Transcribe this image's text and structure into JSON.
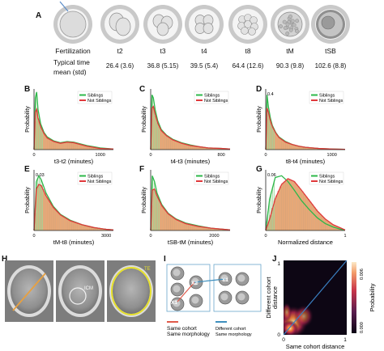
{
  "panel_letters": {
    "A": "A",
    "B": "B",
    "C": "C",
    "D": "D",
    "E": "E",
    "F": "F",
    "G": "G",
    "H": "H",
    "I": "I",
    "J": "J"
  },
  "stages": [
    "Fertilization",
    "t2",
    "t3",
    "t4",
    "t8",
    "tM",
    "tSB"
  ],
  "row_labels": {
    "typical_line1": "Typical time",
    "typical_line2": "mean (std)"
  },
  "typical_times": [
    "26.4 (3.6)",
    "36.8 (5.15)",
    "39.5 (5.4)",
    "64.4 (12.6)",
    "90.3 (9.8)",
    "102.6 (8.8)"
  ],
  "legend": {
    "siblings": "Siblings",
    "not_siblings": "Not Siblings"
  },
  "colors": {
    "siblings": "#2db84a",
    "not_siblings": "#e0393b",
    "hist": "#e7a877",
    "hist_edge": "#b98458",
    "j_line": "#3a7fc1"
  },
  "charts": {
    "B": {
      "ylabel": "Probability",
      "xlabel": "t3-t2 (minutes)",
      "yticks": [],
      "xticks": [
        "0",
        "1000"
      ]
    },
    "C": {
      "ylabel": "Probability",
      "xlabel": "t4-t3 (minutes)",
      "yticks": [],
      "xticks": [
        "0",
        "800"
      ]
    },
    "D": {
      "ylabel": "Probability",
      "xlabel": "t8-t4 (minutes)",
      "yticks": [
        "0.4"
      ],
      "xticks": [
        "0",
        "1000"
      ]
    },
    "E": {
      "ylabel": "Probability",
      "xlabel": "tM-t8 (minutes)",
      "yticks": [
        "0.03"
      ],
      "xticks": [
        "0",
        "3000"
      ]
    },
    "F": {
      "ylabel": "Probability",
      "xlabel": "tSB-tM (minutes)",
      "yticks": [],
      "xticks": [
        "0",
        "2000"
      ]
    },
    "G": {
      "ylabel": "Probability",
      "xlabel": "Normalized distance",
      "yticks": [
        "0.06"
      ],
      "xticks": [
        "0",
        "1"
      ]
    }
  },
  "panel_H": {
    "labels": [
      "ICM",
      "TE"
    ]
  },
  "panel_I": {
    "cells": [
      "X1",
      "X2",
      "Y1"
    ],
    "legend1_line1": "Same cohort",
    "legend1_line2": "Same morphology",
    "legend2_line1": "Different cohort",
    "legend2_line2": "Same morphology"
  },
  "panel_J": {
    "xlabel": "Same cohort distance",
    "ylabel_line1": "Different cohort",
    "ylabel_line2": "distance",
    "xticks": [
      "0",
      "1"
    ],
    "yticks": [
      "0",
      "1"
    ],
    "cbar_label": "Probability",
    "cbar_ticks": [
      "0.000",
      "0.006"
    ]
  },
  "chart_data": [
    {
      "type": "area",
      "panel": "B",
      "xlabel": "t3-t2 (minutes)",
      "ylabel": "Probability",
      "xlim": [
        0,
        1200
      ],
      "series": [
        {
          "name": "Siblings",
          "x": [
            0,
            20,
            40,
            60,
            100,
            150,
            200,
            300,
            400,
            500,
            600,
            700,
            800,
            900,
            1000,
            1200
          ],
          "values": [
            0,
            0.9,
            1.0,
            0.7,
            0.45,
            0.3,
            0.22,
            0.15,
            0.12,
            0.14,
            0.13,
            0.1,
            0.07,
            0.05,
            0.03,
            0.01
          ]
        },
        {
          "name": "Not Siblings",
          "x": [
            0,
            20,
            40,
            60,
            100,
            150,
            200,
            300,
            400,
            500,
            600,
            700,
            800,
            900,
            1000,
            1200
          ],
          "values": [
            0,
            0.65,
            0.7,
            0.55,
            0.4,
            0.28,
            0.2,
            0.14,
            0.11,
            0.13,
            0.12,
            0.09,
            0.06,
            0.04,
            0.02,
            0.01
          ]
        }
      ]
    },
    {
      "type": "area",
      "panel": "C",
      "xlabel": "t4-t3 (minutes)",
      "ylabel": "Probability",
      "xlim": [
        0,
        900
      ],
      "series": [
        {
          "name": "Siblings",
          "x": [
            0,
            15,
            30,
            50,
            80,
            120,
            180,
            250,
            350,
            450,
            550,
            650,
            800,
            900
          ],
          "values": [
            0,
            0.95,
            0.9,
            0.7,
            0.5,
            0.35,
            0.25,
            0.18,
            0.12,
            0.08,
            0.05,
            0.03,
            0.02,
            0.01
          ]
        },
        {
          "name": "Not Siblings",
          "x": [
            0,
            15,
            30,
            50,
            80,
            120,
            180,
            250,
            350,
            450,
            550,
            650,
            800,
            900
          ],
          "values": [
            0,
            0.72,
            0.75,
            0.62,
            0.46,
            0.33,
            0.24,
            0.17,
            0.11,
            0.07,
            0.05,
            0.03,
            0.02,
            0.01
          ]
        }
      ]
    },
    {
      "type": "area",
      "panel": "D",
      "xlabel": "t8-t4 (minutes)",
      "ylabel": "Probability",
      "xlim": [
        0,
        1200
      ],
      "series": [
        {
          "name": "Siblings",
          "x": [
            0,
            20,
            40,
            70,
            100,
            150,
            200,
            300,
            400,
            500,
            600,
            800,
            1000,
            1200
          ],
          "values": [
            0,
            0.95,
            0.75,
            0.55,
            0.42,
            0.3,
            0.22,
            0.14,
            0.09,
            0.06,
            0.04,
            0.02,
            0.01,
            0.005
          ]
        },
        {
          "name": "Not Siblings",
          "x": [
            0,
            20,
            40,
            70,
            100,
            150,
            200,
            300,
            400,
            500,
            600,
            800,
            1000,
            1200
          ],
          "values": [
            0,
            0.72,
            0.65,
            0.5,
            0.4,
            0.29,
            0.21,
            0.13,
            0.09,
            0.06,
            0.04,
            0.02,
            0.01,
            0.005
          ]
        }
      ]
    },
    {
      "type": "area",
      "panel": "E",
      "xlabel": "tM-t8 (minutes)",
      "ylabel": "Probability",
      "xlim": [
        0,
        3300
      ],
      "series": [
        {
          "name": "Siblings",
          "x": [
            0,
            100,
            200,
            300,
            500,
            800,
            1100,
            1500,
            2000,
            2500,
            3000,
            3300
          ],
          "values": [
            0,
            0.85,
            0.95,
            0.88,
            0.65,
            0.42,
            0.28,
            0.18,
            0.1,
            0.05,
            0.02,
            0.01
          ]
        },
        {
          "name": "Not Siblings",
          "x": [
            0,
            100,
            200,
            300,
            500,
            800,
            1100,
            1500,
            2000,
            2500,
            3000,
            3300
          ],
          "values": [
            0,
            0.72,
            0.8,
            0.78,
            0.6,
            0.4,
            0.27,
            0.17,
            0.1,
            0.05,
            0.02,
            0.01
          ]
        }
      ]
    },
    {
      "type": "area",
      "panel": "F",
      "xlabel": "tSB-tM (minutes)",
      "ylabel": "Probability",
      "xlim": [
        0,
        2500
      ],
      "series": [
        {
          "name": "Siblings",
          "x": [
            0,
            50,
            120,
            200,
            350,
            550,
            800,
            1100,
            1500,
            1900,
            2300,
            2500
          ],
          "values": [
            0,
            0.95,
            0.85,
            0.65,
            0.45,
            0.3,
            0.2,
            0.13,
            0.08,
            0.04,
            0.02,
            0.01
          ]
        },
        {
          "name": "Not Siblings",
          "x": [
            0,
            50,
            120,
            200,
            350,
            550,
            800,
            1100,
            1500,
            1900,
            2300,
            2500
          ],
          "values": [
            0,
            0.7,
            0.72,
            0.6,
            0.43,
            0.29,
            0.19,
            0.12,
            0.07,
            0.04,
            0.02,
            0.01
          ]
        }
      ]
    },
    {
      "type": "area",
      "panel": "G",
      "xlabel": "Normalized distance",
      "ylabel": "Probability",
      "xlim": [
        0,
        1
      ],
      "series": [
        {
          "name": "Siblings",
          "x": [
            0,
            0.05,
            0.12,
            0.2,
            0.28,
            0.36,
            0.45,
            0.55,
            0.65,
            0.75,
            0.85,
            0.95,
            1.0
          ],
          "values": [
            0,
            0.55,
            0.92,
            0.95,
            0.85,
            0.7,
            0.52,
            0.36,
            0.22,
            0.12,
            0.06,
            0.02,
            0.01
          ]
        },
        {
          "name": "Not Siblings",
          "x": [
            0,
            0.05,
            0.12,
            0.2,
            0.28,
            0.36,
            0.45,
            0.55,
            0.65,
            0.75,
            0.85,
            0.95,
            1.0
          ],
          "values": [
            0,
            0.2,
            0.55,
            0.8,
            0.9,
            0.85,
            0.7,
            0.52,
            0.34,
            0.2,
            0.1,
            0.04,
            0.01
          ]
        }
      ]
    }
  ]
}
